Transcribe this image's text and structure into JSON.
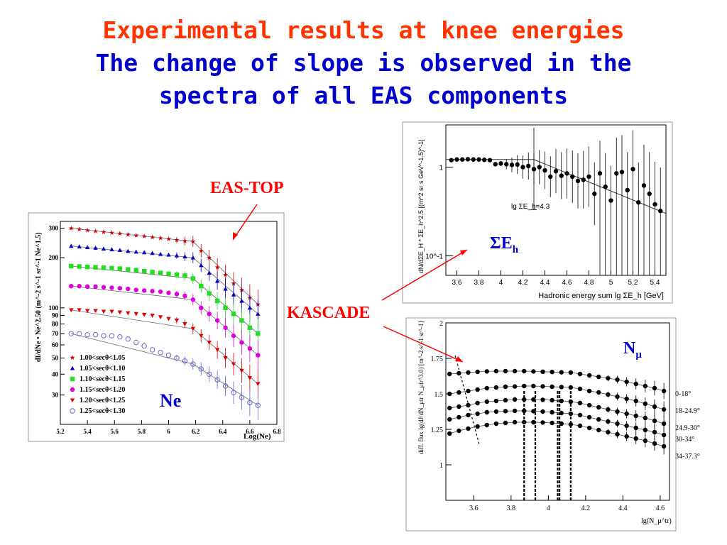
{
  "slide": {
    "title_line1": "Experimental results at knee energies",
    "title_line2": "The change of slope is observed in the",
    "title_line3": "spectra of all EAS components"
  },
  "labels": {
    "eas_top": "EAS-TOP",
    "kascade": "KASCADE",
    "ne": "Ne",
    "sum_e_h": "ΣE",
    "sum_e_h_sub": "h",
    "n_mu": "N",
    "n_mu_sub": "μ"
  },
  "colors": {
    "red": "#ff0000",
    "blue": "#0000cc",
    "title_red": "#ff3300"
  },
  "chart_data": [
    {
      "id": "eas_top_ne",
      "type": "scatter",
      "title": "",
      "xlabel": "Log(Ne)",
      "ylabel": "dI/dNe • Ne^2.50 (m^-2 s^-1 sr^-1 Ne^1.5)",
      "xlim": [
        5.2,
        6.8
      ],
      "ylim": [
        20,
        330
      ],
      "yscale": "log",
      "xticks": [
        "5.2",
        "5.4",
        "5.6",
        "5.8",
        "6",
        "6.2",
        "6.4",
        "6.6",
        "6.8"
      ],
      "yticks": [
        "300",
        "200",
        "100",
        "90",
        "80",
        "70",
        "60",
        "50",
        "40",
        "30"
      ],
      "legend_placement": "bottom-left",
      "series": [
        {
          "name": "1.00<secθ<1.05",
          "color": "#cc0000",
          "marker": "star",
          "x": [
            5.28,
            5.34,
            5.4,
            5.46,
            5.52,
            5.58,
            5.64,
            5.7,
            5.76,
            5.82,
            5.88,
            5.94,
            6.0,
            6.06,
            6.12,
            6.18,
            6.24,
            6.3,
            6.36,
            6.42,
            6.48,
            6.54,
            6.6,
            6.66
          ],
          "y": [
            300,
            296,
            292,
            288,
            285,
            282,
            279,
            275,
            272,
            269,
            265,
            262,
            259,
            255,
            252,
            250,
            220,
            200,
            175,
            158,
            140,
            128,
            115,
            105
          ]
        },
        {
          "name": "1.05<secθ<1.10",
          "color": "#0000cc",
          "marker": "triangle-up",
          "x": [
            5.28,
            5.34,
            5.4,
            5.46,
            5.52,
            5.58,
            5.64,
            5.7,
            5.76,
            5.82,
            5.88,
            5.94,
            6.0,
            6.06,
            6.12,
            6.18,
            6.24,
            6.3,
            6.36,
            6.42,
            6.48,
            6.54,
            6.6,
            6.66
          ],
          "y": [
            235,
            233,
            231,
            229,
            226,
            224,
            222,
            219,
            217,
            215,
            213,
            210,
            208,
            206,
            203,
            200,
            180,
            162,
            145,
            130,
            120,
            110,
            100,
            92
          ]
        },
        {
          "name": "1.10<secθ<1.15",
          "color": "#22dd22",
          "marker": "square",
          "x": [
            5.28,
            5.34,
            5.4,
            5.46,
            5.52,
            5.58,
            5.64,
            5.7,
            5.76,
            5.82,
            5.88,
            5.94,
            6.0,
            6.06,
            6.12,
            6.18,
            6.24,
            6.3,
            6.36,
            6.42,
            6.48,
            6.54,
            6.6,
            6.66
          ],
          "y": [
            178,
            177,
            176,
            175,
            174,
            173,
            172,
            170,
            168,
            166,
            164,
            162,
            160,
            158,
            156,
            150,
            135,
            122,
            110,
            100,
            92,
            84,
            76,
            70
          ]
        },
        {
          "name": "1.15<secθ<1.20",
          "color": "#dd00dd",
          "marker": "circle",
          "x": [
            5.28,
            5.34,
            5.4,
            5.46,
            5.52,
            5.58,
            5.64,
            5.7,
            5.76,
            5.82,
            5.88,
            5.94,
            6.0,
            6.06,
            6.12,
            6.18,
            6.24,
            6.3,
            6.36,
            6.42,
            6.48,
            6.54,
            6.6,
            6.66
          ],
          "y": [
            135,
            135,
            134,
            134,
            133,
            132,
            131,
            130,
            128,
            127,
            126,
            125,
            123,
            121,
            118,
            112,
            100,
            92,
            84,
            76,
            68,
            62,
            57,
            52
          ]
        },
        {
          "name": "1.20<secθ<1.25",
          "color": "#dd0000",
          "marker": "triangle-down",
          "x": [
            5.28,
            5.34,
            5.4,
            5.46,
            5.52,
            5.58,
            5.64,
            5.7,
            5.76,
            5.82,
            5.88,
            5.94,
            6.0,
            6.06,
            6.12,
            6.18,
            6.24,
            6.3,
            6.36,
            6.42,
            6.48,
            6.54,
            6.6,
            6.66
          ],
          "y": [
            97,
            97,
            96,
            96,
            95,
            95,
            94,
            93,
            92,
            91,
            90,
            88,
            86,
            84,
            80,
            75,
            68,
            62,
            56,
            50,
            46,
            42,
            38,
            35
          ]
        },
        {
          "name": "1.25<secθ<1.30",
          "color": "#6666cc",
          "marker": "open-circle",
          "x": [
            5.28,
            5.34,
            5.4,
            5.46,
            5.52,
            5.58,
            5.64,
            5.7,
            5.76,
            5.82,
            5.88,
            5.94,
            6.0,
            6.06,
            6.12,
            6.18,
            6.24,
            6.3,
            6.36,
            6.42,
            6.48,
            6.54,
            6.6,
            6.66
          ],
          "y": [
            70,
            70,
            69,
            69,
            68,
            68,
            67,
            65,
            62,
            59,
            56,
            54,
            52,
            50,
            48,
            46,
            43,
            40,
            37,
            34,
            31,
            29,
            27,
            26
          ]
        }
      ]
    },
    {
      "id": "kascade_sum_eh",
      "type": "scatter",
      "title": "",
      "xlabel": "Hadronic energy sum lg ΣE_h [GeV]",
      "ylabel": "dN/dΣE_H * ΣE_h^2.5 [(m^2 sr s GeV^-1.5)^-1]",
      "xlim": [
        3.5,
        5.5
      ],
      "ylim": [
        0.06,
        3
      ],
      "yscale": "log",
      "xticks": [
        "3.6",
        "3.8",
        "4",
        "4.2",
        "4.4",
        "4.6",
        "4.8",
        "5",
        "5.2",
        "5.4"
      ],
      "yticks": [
        "1",
        "10^-1"
      ],
      "annotation": "lg ΣE_h=4.3",
      "series": [
        {
          "name": "",
          "color": "#000000",
          "x": [
            3.55,
            3.6,
            3.65,
            3.7,
            3.75,
            3.8,
            3.85,
            3.9,
            3.95,
            4.0,
            4.05,
            4.1,
            4.15,
            4.2,
            4.25,
            4.3,
            4.35,
            4.4,
            4.45,
            4.5,
            4.55,
            4.6,
            4.65,
            4.7,
            4.75,
            4.8,
            4.85,
            4.9,
            4.95,
            5.0,
            5.05,
            5.1,
            5.15,
            5.2,
            5.25,
            5.3,
            5.35,
            5.4,
            5.45
          ],
          "y": [
            1.2,
            1.22,
            1.22,
            1.23,
            1.22,
            1.22,
            1.21,
            1.2,
            1.08,
            1.1,
            1.08,
            1.06,
            1.07,
            1.0,
            1.03,
            0.95,
            1.0,
            0.92,
            0.78,
            0.9,
            0.8,
            0.85,
            0.78,
            0.7,
            0.72,
            0.78,
            0.5,
            0.85,
            0.6,
            0.42,
            0.85,
            0.88,
            0.55,
            0.95,
            0.4,
            0.62,
            0.5,
            0.38,
            0.32
          ]
        }
      ]
    },
    {
      "id": "kascade_n_mu",
      "type": "scatter",
      "title": "",
      "xlabel": "lg(N_μ^tr)",
      "ylabel": "diff. flux lg(dJ/dN_μtr N_μtr^3.0) [m^-2 s^-1 sr^-1]",
      "xlim": [
        3.45,
        4.65
      ],
      "ylim": [
        0.75,
        2.0
      ],
      "xticks": [
        "3.6",
        "3.8",
        "4",
        "4.2",
        "4.4",
        "4.6"
      ],
      "yticks": [
        "1",
        "1.25",
        "1.5",
        "1.75",
        "2"
      ],
      "series": [
        {
          "name": "0-18°",
          "color": "#000000",
          "x": [
            3.47,
            3.52,
            3.57,
            3.62,
            3.67,
            3.72,
            3.77,
            3.82,
            3.87,
            3.92,
            3.97,
            4.02,
            4.07,
            4.12,
            4.17,
            4.22,
            4.27,
            4.32,
            4.37,
            4.42,
            4.47,
            4.52,
            4.57,
            4.62
          ],
          "y": [
            1.64,
            1.645,
            1.65,
            1.655,
            1.658,
            1.66,
            1.66,
            1.66,
            1.66,
            1.658,
            1.656,
            1.654,
            1.652,
            1.65,
            1.64,
            1.63,
            1.62,
            1.61,
            1.6,
            1.585,
            1.57,
            1.555,
            1.54,
            1.52
          ]
        },
        {
          "name": "18-24.9°",
          "color": "#000000",
          "x": [
            3.47,
            3.52,
            3.57,
            3.62,
            3.67,
            3.72,
            3.77,
            3.82,
            3.87,
            3.92,
            3.97,
            4.02,
            4.07,
            4.12,
            4.17,
            4.22,
            4.27,
            4.32,
            4.37,
            4.42,
            4.47,
            4.52,
            4.57,
            4.62
          ],
          "y": [
            1.5,
            1.51,
            1.52,
            1.53,
            1.54,
            1.545,
            1.55,
            1.552,
            1.555,
            1.555,
            1.553,
            1.55,
            1.548,
            1.545,
            1.535,
            1.52,
            1.51,
            1.495,
            1.48,
            1.465,
            1.45,
            1.43,
            1.41,
            1.39
          ]
        },
        {
          "name": "24.9-30°",
          "color": "#000000",
          "x": [
            3.47,
            3.52,
            3.57,
            3.62,
            3.67,
            3.72,
            3.77,
            3.82,
            3.87,
            3.92,
            3.97,
            4.02,
            4.07,
            4.12,
            4.17,
            4.22,
            4.27,
            4.32,
            4.37,
            4.42,
            4.47,
            4.52,
            4.57,
            4.62
          ],
          "y": [
            1.4,
            1.41,
            1.42,
            1.435,
            1.445,
            1.45,
            1.455,
            1.46,
            1.46,
            1.46,
            1.458,
            1.455,
            1.45,
            1.445,
            1.435,
            1.42,
            1.405,
            1.39,
            1.375,
            1.36,
            1.345,
            1.33,
            1.31,
            1.29
          ]
        },
        {
          "name": "30-34°",
          "color": "#000000",
          "x": [
            3.47,
            3.52,
            3.57,
            3.62,
            3.67,
            3.72,
            3.77,
            3.82,
            3.87,
            3.92,
            3.97,
            4.02,
            4.07,
            4.12,
            4.17,
            4.22,
            4.27,
            4.32,
            4.37,
            4.42,
            4.47,
            4.52,
            4.57,
            4.62
          ],
          "y": [
            1.32,
            1.335,
            1.35,
            1.36,
            1.37,
            1.375,
            1.378,
            1.38,
            1.38,
            1.378,
            1.375,
            1.37,
            1.365,
            1.36,
            1.35,
            1.335,
            1.32,
            1.305,
            1.29,
            1.275,
            1.26,
            1.245,
            1.23,
            1.21
          ]
        },
        {
          "name": "34-37.3°",
          "color": "#000000",
          "x": [
            3.47,
            3.52,
            3.57,
            3.62,
            3.67,
            3.72,
            3.77,
            3.82,
            3.87,
            3.92,
            3.97,
            4.02,
            4.07,
            4.12,
            4.17,
            4.22,
            4.27,
            4.32,
            4.37,
            4.42,
            4.47,
            4.52,
            4.57,
            4.62
          ],
          "y": [
            1.22,
            1.24,
            1.255,
            1.27,
            1.28,
            1.29,
            1.295,
            1.3,
            1.3,
            1.3,
            1.298,
            1.295,
            1.29,
            1.285,
            1.275,
            1.26,
            1.245,
            1.23,
            1.215,
            1.2,
            1.185,
            1.17,
            1.15,
            1.13
          ]
        }
      ]
    }
  ]
}
